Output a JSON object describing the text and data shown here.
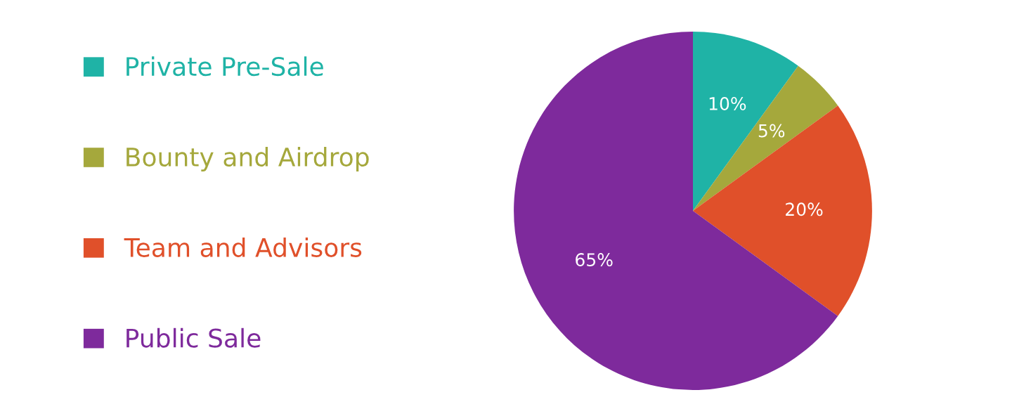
{
  "chart_data": {
    "type": "pie",
    "categories": [
      "Private Pre-Sale",
      "Bounty and Airdrop",
      "Team and Advisors",
      "Public Sale"
    ],
    "values": [
      10,
      5,
      20,
      65
    ],
    "colors": [
      "#1fb3a6",
      "#a5a83c",
      "#e0502a",
      "#7e2a9c"
    ],
    "value_labels": [
      "10%",
      "5%",
      "20%",
      "65%"
    ],
    "legend": "left"
  }
}
